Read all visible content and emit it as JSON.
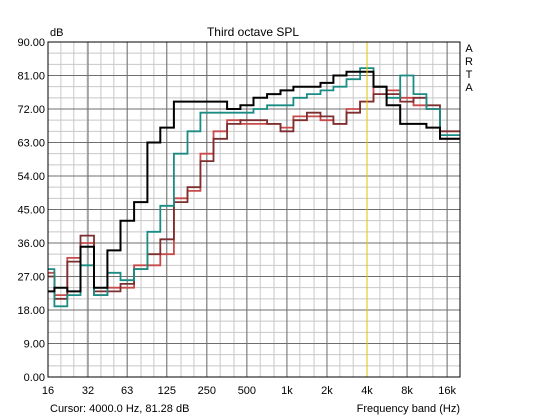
{
  "chart_data": {
    "type": "step-line",
    "title": "Third octave SPL",
    "ylabel": "dB",
    "xlabel": "Frequency band (Hz)",
    "side_label": [
      "A",
      "R",
      "T",
      "A"
    ],
    "cursor_text": "Cursor:  4000.0 Hz, 81.28 dB",
    "cursor_hz": 4000,
    "cursor_color": "#e8c800",
    "ylim": [
      0,
      90
    ],
    "y_ticks": [
      0,
      9,
      18,
      27,
      36,
      45,
      54,
      63,
      72,
      81,
      90
    ],
    "y_tick_labels": [
      "0.00",
      "9.00",
      "18.00",
      "27.00",
      "36.00",
      "45.00",
      "54.00",
      "63.00",
      "72.00",
      "81.00",
      "90.00"
    ],
    "x_tick_hz": [
      16,
      32,
      63,
      125,
      250,
      500,
      1000,
      2000,
      4000,
      8000,
      16000
    ],
    "x_tick_labels": [
      "16",
      "32",
      "63",
      "125",
      "250",
      "500",
      "1k",
      "2k",
      "4k",
      "8k",
      "16k"
    ],
    "xlim_hz": [
      16,
      20000
    ],
    "bands_hz": [
      16,
      20,
      25,
      31.5,
      40,
      50,
      63,
      80,
      100,
      125,
      160,
      200,
      250,
      315,
      400,
      500,
      630,
      800,
      1000,
      1250,
      1600,
      2000,
      2500,
      3150,
      4000,
      5000,
      6300,
      8000,
      10000,
      12500,
      16000,
      20000
    ],
    "grid": true,
    "series": [
      {
        "color": "#000000",
        "values": [
          23,
          24,
          23,
          35,
          24,
          34,
          42,
          47,
          63,
          67,
          74,
          74,
          74,
          74,
          72,
          73,
          75,
          76,
          77,
          78,
          78,
          79,
          81,
          82,
          82,
          78,
          73,
          68,
          68,
          67,
          64,
          64
        ]
      },
      {
        "color": "#1a8c84",
        "values": [
          29,
          19,
          22,
          30,
          22,
          28,
          26,
          29,
          39,
          46,
          60,
          66,
          71,
          71,
          71,
          71,
          72,
          73,
          73,
          75,
          76,
          77,
          78,
          80,
          83,
          78,
          75,
          81,
          76,
          72,
          65,
          65
        ]
      },
      {
        "color": "#7d2e2e",
        "values": [
          27,
          21,
          31,
          38,
          23,
          23,
          25,
          29,
          33,
          37,
          47,
          51,
          58,
          64,
          68,
          69,
          69,
          68,
          66,
          69,
          71,
          70,
          68,
          71,
          74,
          76,
          76,
          74,
          75,
          73,
          66,
          66
        ]
      },
      {
        "color": "#c94a4a",
        "values": [
          28,
          22,
          32,
          36,
          22,
          24,
          24,
          30,
          30,
          33,
          48,
          50,
          60,
          66,
          69,
          68,
          68,
          68,
          67,
          70,
          70,
          69,
          68,
          72,
          74,
          78,
          77,
          75,
          73,
          72,
          64,
          64
        ]
      }
    ]
  }
}
